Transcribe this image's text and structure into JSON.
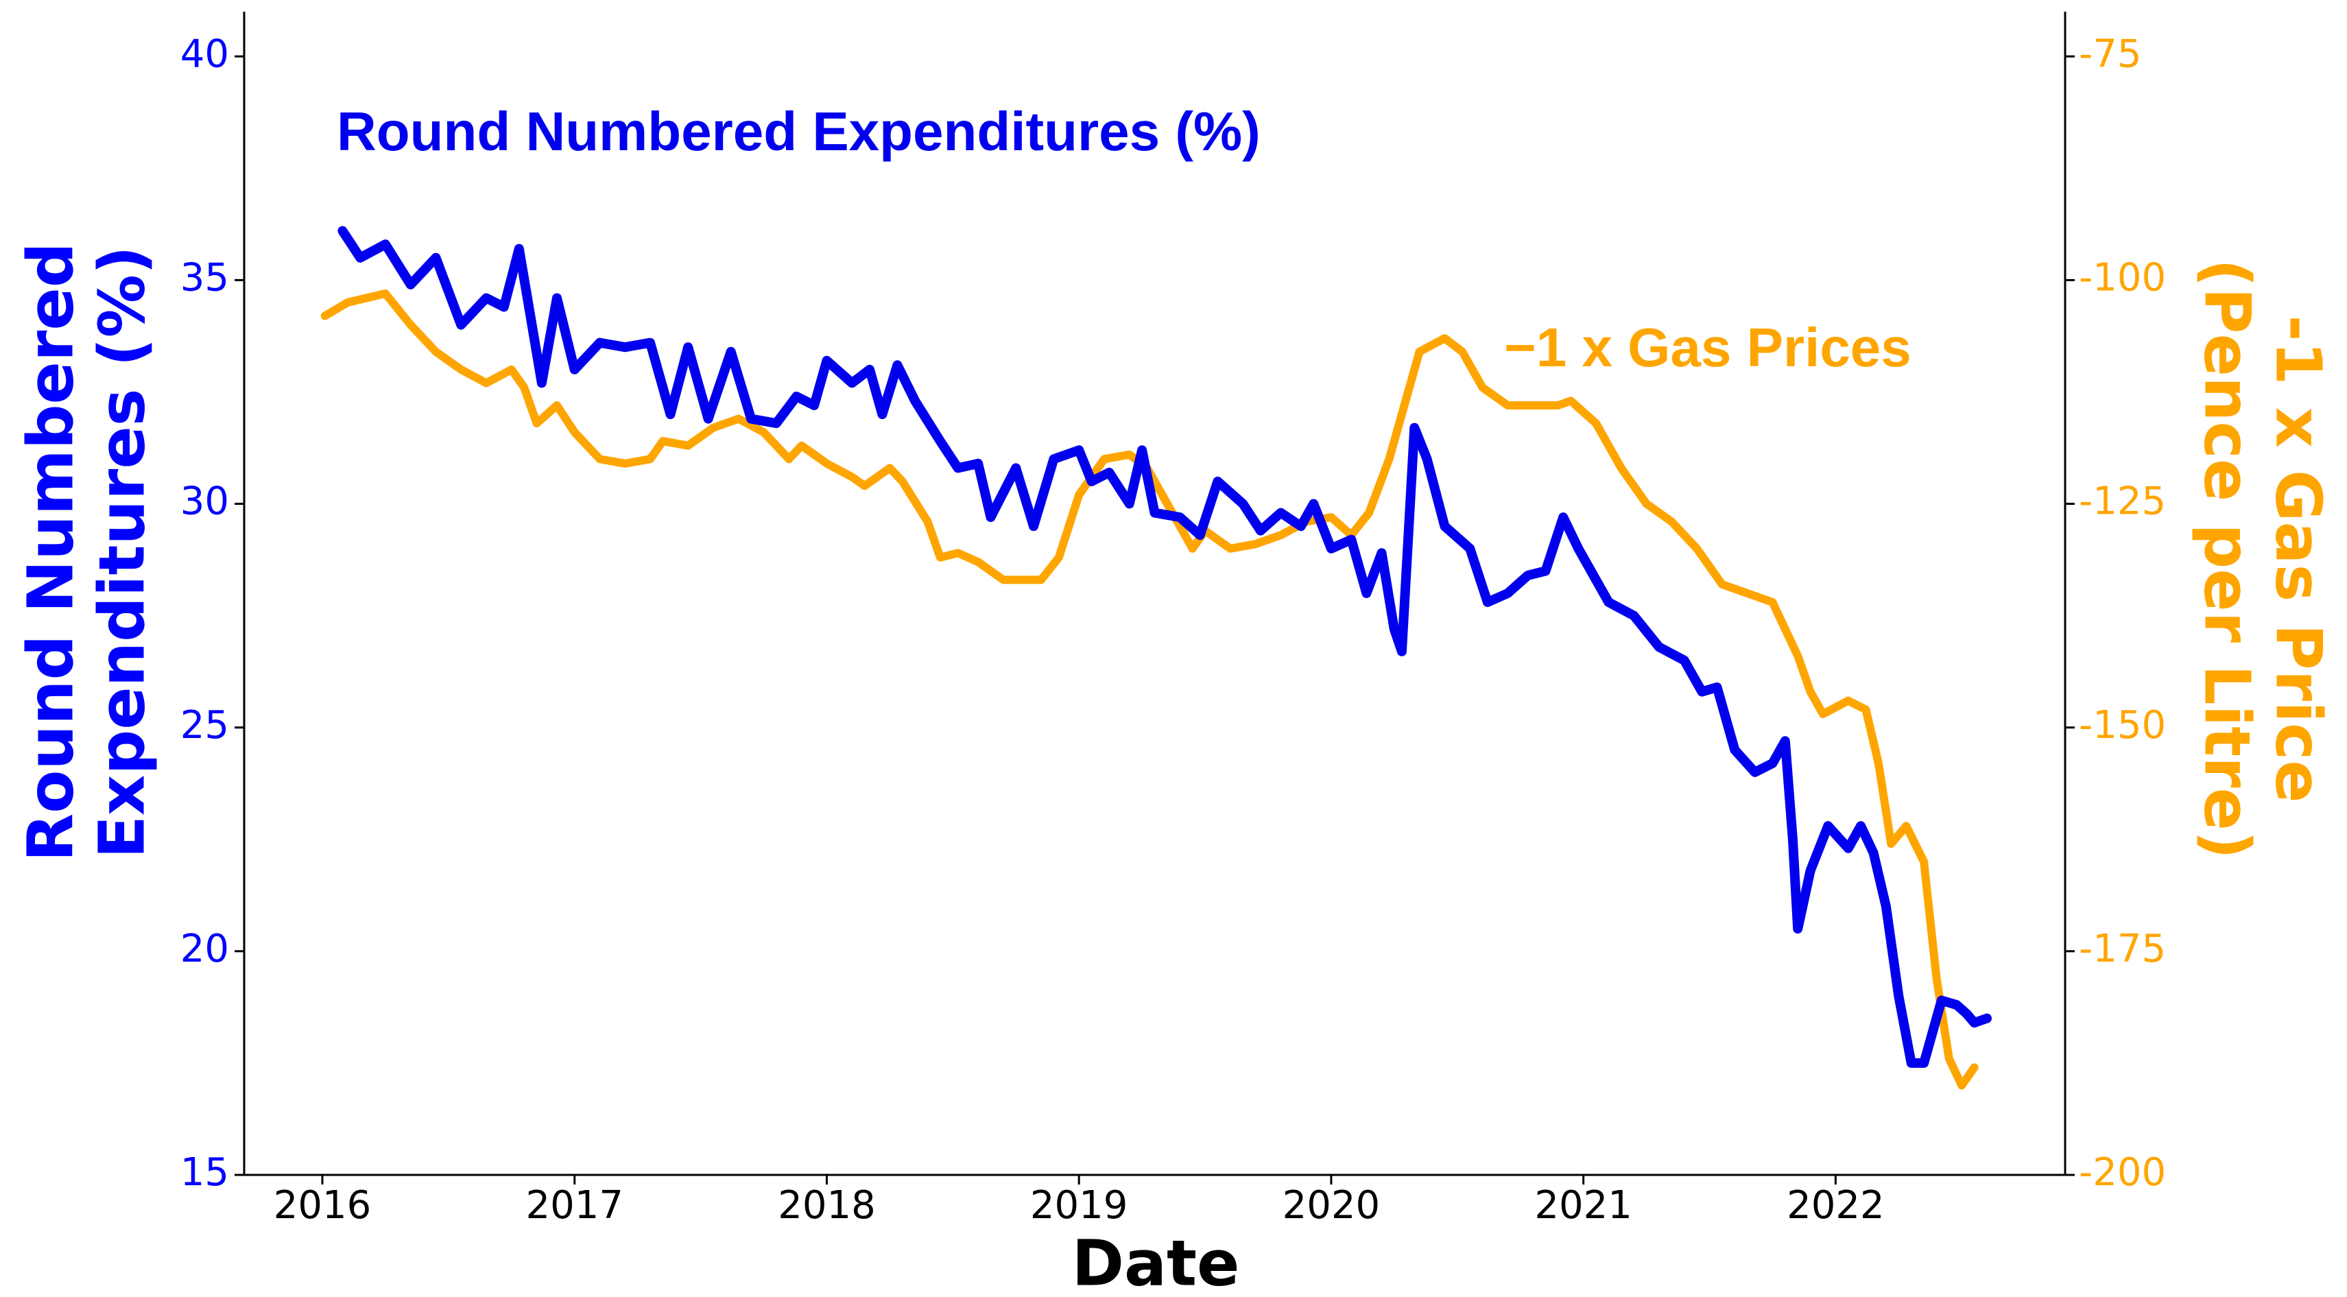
{
  "chart_data": {
    "type": "line",
    "xlabel": "Date",
    "ylabel": [
      "Round Numbered",
      "Expenditures (%)"
    ],
    "y2label": [
      "-1 x Gas Price",
      "(Pence per Litre)"
    ],
    "xlim": [
      2015.69,
      2022.91
    ],
    "xticks": [
      2016,
      2017,
      2018,
      2019,
      2020,
      2021,
      2022
    ],
    "ylim": [
      15,
      41
    ],
    "yticks": [
      15,
      20,
      25,
      30,
      35,
      40
    ],
    "y2lim": [
      -200,
      -70
    ],
    "y2ticks": [
      -200,
      -175,
      -150,
      -125,
      -100,
      -75
    ],
    "left_color": "#0000ff",
    "right_color": "#ffa500",
    "series": [
      {
        "name": "Round Numbered Expenditures (%)",
        "color": "#0000ee",
        "axis": "y",
        "x": [
          2016.08,
          2016.15,
          2016.25,
          2016.35,
          2016.45,
          2016.55,
          2016.65,
          2016.72,
          2016.78,
          2016.87,
          2016.93,
          2017.0,
          2017.1,
          2017.2,
          2017.3,
          2017.38,
          2017.45,
          2017.53,
          2017.62,
          2017.7,
          2017.8,
          2017.88,
          2017.95,
          2018.0,
          2018.1,
          2018.17,
          2018.22,
          2018.28,
          2018.35,
          2018.45,
          2018.52,
          2018.6,
          2018.65,
          2018.75,
          2018.82,
          2018.9,
          2019.0,
          2019.05,
          2019.12,
          2019.2,
          2019.25,
          2019.3,
          2019.4,
          2019.48,
          2019.55,
          2019.65,
          2019.72,
          2019.8,
          2019.88,
          2019.93,
          2020.0,
          2020.08,
          2020.14,
          2020.2,
          2020.25,
          2020.28,
          2020.33,
          2020.38,
          2020.45,
          2020.55,
          2020.62,
          2020.7,
          2020.78,
          2020.85,
          2020.92,
          2020.98,
          2021.1,
          2021.2,
          2021.3,
          2021.4,
          2021.47,
          2021.53,
          2021.6,
          2021.68,
          2021.75,
          2021.8,
          2021.83,
          2021.85,
          2021.9,
          2021.97,
          2022.05,
          2022.1,
          2022.15,
          2022.2,
          2022.25,
          2022.3,
          2022.35,
          2022.42,
          2022.48,
          2022.52,
          2022.55,
          2022.6
        ],
        "values": [
          36.1,
          35.5,
          35.8,
          34.9,
          35.5,
          34.0,
          34.6,
          34.4,
          35.7,
          32.7,
          34.6,
          33.0,
          33.6,
          33.5,
          33.6,
          32.0,
          33.5,
          31.9,
          33.4,
          31.9,
          31.8,
          32.4,
          32.2,
          33.2,
          32.7,
          33.0,
          32.0,
          33.1,
          32.3,
          31.4,
          30.8,
          30.9,
          29.7,
          30.8,
          29.5,
          31.0,
          31.2,
          30.5,
          30.7,
          30.0,
          31.2,
          29.8,
          29.7,
          29.3,
          30.5,
          30.0,
          29.4,
          29.8,
          29.5,
          30.0,
          29.0,
          29.2,
          28.0,
          28.9,
          27.2,
          26.7,
          31.7,
          31.0,
          29.5,
          29.0,
          27.8,
          28.0,
          28.4,
          28.5,
          29.7,
          29.0,
          27.8,
          27.5,
          26.8,
          26.5,
          25.8,
          25.9,
          24.5,
          24.0,
          24.2,
          24.7,
          22.5,
          20.5,
          21.8,
          22.8,
          22.3,
          22.8,
          22.2,
          21.0,
          19.0,
          17.5,
          17.5,
          18.9,
          18.8,
          18.6,
          18.4,
          18.5
        ]
      },
      {
        "name": "−1 x Gas Prices",
        "color": "#ffa500",
        "axis": "y2",
        "x": [
          2016.01,
          2016.1,
          2016.25,
          2016.35,
          2016.45,
          2016.55,
          2016.65,
          2016.75,
          2016.8,
          2016.85,
          2016.93,
          2017.0,
          2017.1,
          2017.2,
          2017.3,
          2017.35,
          2017.45,
          2017.55,
          2017.65,
          2017.75,
          2017.85,
          2017.9,
          2018.0,
          2018.1,
          2018.15,
          2018.25,
          2018.3,
          2018.4,
          2018.45,
          2018.52,
          2018.6,
          2018.7,
          2018.85,
          2018.92,
          2019.0,
          2019.1,
          2019.2,
          2019.27,
          2019.35,
          2019.45,
          2019.5,
          2019.6,
          2019.7,
          2019.8,
          2019.9,
          2020.0,
          2020.08,
          2020.15,
          2020.23,
          2020.3,
          2020.35,
          2020.45,
          2020.52,
          2020.6,
          2020.7,
          2020.8,
          2020.9,
          2020.95,
          2021.05,
          2021.15,
          2021.25,
          2021.35,
          2021.45,
          2021.55,
          2021.65,
          2021.75,
          2021.85,
          2021.9,
          2021.95,
          2022.05,
          2022.12,
          2022.17,
          2022.22,
          2022.28,
          2022.35,
          2022.4,
          2022.45,
          2022.5,
          2022.55
        ],
        "values": [
          -104,
          -102.5,
          -101.5,
          -105,
          -108,
          -110,
          -111.5,
          -110,
          -112,
          -116,
          -114,
          -117,
          -120,
          -120.5,
          -120,
          -118,
          -118.5,
          -116.5,
          -115.5,
          -117,
          -120,
          -118.5,
          -120.5,
          -122,
          -123,
          -121,
          -122.5,
          -127,
          -131,
          -130.5,
          -131.5,
          -133.5,
          -133.5,
          -131,
          -124,
          -120,
          -119.5,
          -121,
          -125,
          -130,
          -128,
          -130,
          -129.5,
          -128.5,
          -127,
          -126.5,
          -128.5,
          -126,
          -120,
          -113,
          -108,
          -106.5,
          -108,
          -112,
          -114,
          -114,
          -114,
          -113.5,
          -116,
          -121,
          -125,
          -127,
          -130,
          -134,
          -135,
          -136,
          -142,
          -146,
          -148.5,
          -147,
          -148,
          -154,
          -163,
          -161,
          -165,
          -178,
          -187,
          -190,
          -188
        ]
      }
    ]
  }
}
